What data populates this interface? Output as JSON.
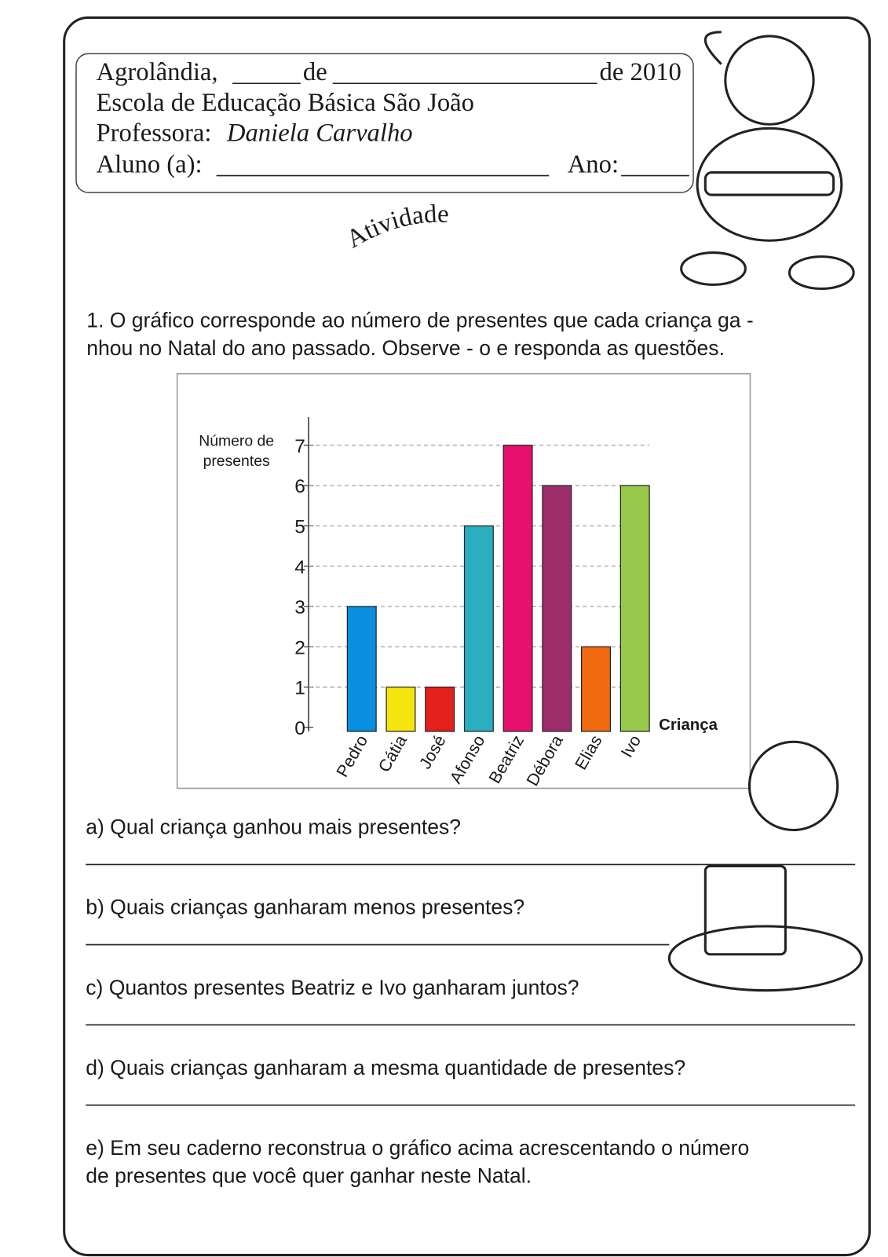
{
  "header": {
    "place": "Agrolândia,",
    "de": "de",
    "year": "de 2010",
    "school": "Escola de Educação Básica São João",
    "teacher_label": "Professora:",
    "teacher": "Daniela Carvalho",
    "student_label": "Aluno (a):",
    "grade_label": "Ano:"
  },
  "title": "Atividade",
  "intro": [
    "1. O gráfico corresponde ao número de presentes que cada criança  ga -",
    "nhou no Natal do ano passado. Observe - o e responda as questões."
  ],
  "chart_data": {
    "type": "bar",
    "y_label": [
      "Número de",
      "presentes"
    ],
    "x_label": "Criança",
    "categories": [
      "Pedro",
      "Cátia",
      "José",
      "Afonso",
      "Beatriz",
      "Débora",
      "Elias",
      "Ivo"
    ],
    "values": [
      3,
      1,
      1,
      5,
      7,
      6,
      2,
      6
    ],
    "colors": [
      "#0a8ee0",
      "#f5e60f",
      "#e3201b",
      "#2bafc0",
      "#e8106e",
      "#9b2d6b",
      "#f26a10",
      "#98c94a"
    ],
    "ylim": [
      0,
      7.7
    ],
    "yticks": [
      0,
      1,
      2,
      3,
      4,
      5,
      6,
      7
    ],
    "grid": true
  },
  "questions": [
    {
      "text": "a) Qual criança ganhou mais presentes?"
    },
    {
      "text": "b) Quais crianças ganharam  menos presentes?"
    },
    {
      "text": "c) Quantos presentes Beatriz e Ivo ganharam juntos?"
    },
    {
      "text": "d) Quais crianças ganharam a mesma quantidade de presentes?"
    },
    {
      "lines": [
        "e) Em seu caderno reconstrua o gráfico acima acrescentando o número",
        " de presentes que você quer ganhar neste Natal."
      ]
    }
  ]
}
